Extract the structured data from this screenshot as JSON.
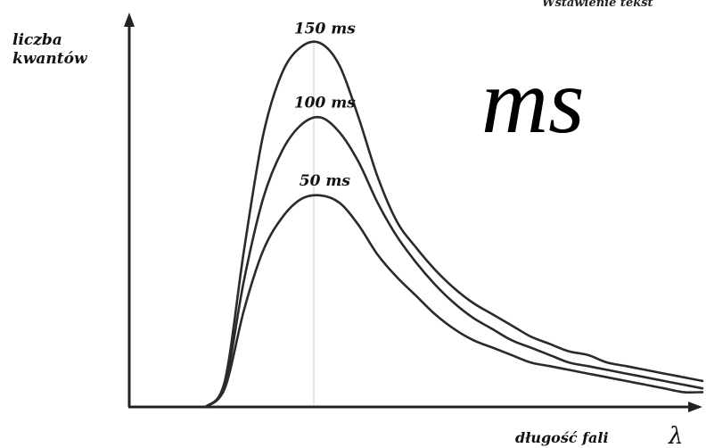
{
  "chart_data": {
    "type": "line",
    "title": "",
    "ylabel": [
      "liczba",
      "kwantów"
    ],
    "xlabel": "długość fali",
    "xlabel_symbol": "λ",
    "big_label": "ms",
    "corner_text": "Wstawienie tekst",
    "x": [
      0.0,
      0.1,
      0.2,
      0.3,
      0.4,
      0.5,
      0.6,
      0.7,
      0.8,
      0.9,
      1.0,
      1.1,
      1.2,
      1.3,
      1.4,
      1.5,
      1.6,
      1.7,
      1.8,
      1.9,
      2.0,
      2.1,
      2.2,
      2.3,
      2.4,
      2.5,
      2.6,
      2.7,
      2.8,
      2.9,
      3.0
    ],
    "xlim": [
      0,
      3
    ],
    "ylim": [
      0,
      1
    ],
    "grid": false,
    "legend": "inline-at-peaks",
    "series": [
      {
        "name": "150 ms",
        "values": [
          0.0,
          0.0,
          0.0,
          0.0,
          0.0,
          0.07,
          0.42,
          0.73,
          0.9,
          0.97,
          0.98,
          0.92,
          0.78,
          0.62,
          0.5,
          0.43,
          0.37,
          0.32,
          0.28,
          0.25,
          0.22,
          0.19,
          0.17,
          0.15,
          0.14,
          0.12,
          0.11,
          0.1,
          0.09,
          0.08,
          0.07
        ]
      },
      {
        "name": "100 ms",
        "values": [
          0.0,
          0.0,
          0.0,
          0.0,
          0.0,
          0.06,
          0.34,
          0.56,
          0.69,
          0.76,
          0.78,
          0.74,
          0.66,
          0.55,
          0.46,
          0.39,
          0.33,
          0.28,
          0.24,
          0.21,
          0.18,
          0.16,
          0.14,
          0.12,
          0.11,
          0.1,
          0.09,
          0.08,
          0.07,
          0.06,
          0.05
        ]
      },
      {
        "name": "50 ms",
        "values": [
          0.0,
          0.0,
          0.0,
          0.0,
          0.0,
          0.05,
          0.26,
          0.42,
          0.51,
          0.56,
          0.57,
          0.55,
          0.49,
          0.41,
          0.35,
          0.3,
          0.25,
          0.21,
          0.18,
          0.16,
          0.14,
          0.12,
          0.11,
          0.1,
          0.09,
          0.08,
          0.07,
          0.06,
          0.05,
          0.04,
          0.04
        ]
      }
    ]
  }
}
